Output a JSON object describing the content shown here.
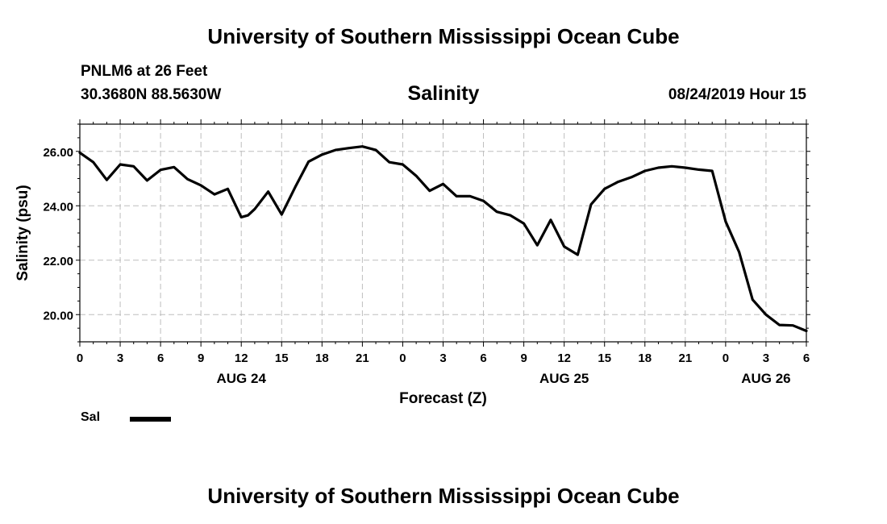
{
  "header": {
    "title": "University of Southern Mississippi Ocean Cube",
    "station": "PNLM6 at 26 Feet",
    "location": "30.3680N 88.5630W",
    "variable": "Salinity",
    "timestamp": "08/24/2019 Hour 15"
  },
  "footer": {
    "title": "University of Southern Mississippi Ocean Cube"
  },
  "legend": {
    "label": "Sal",
    "color": "#000000"
  },
  "chart_data": {
    "type": "line",
    "title": "Salinity",
    "xlabel": "Forecast (Z)",
    "ylabel": "Salinity (psu)",
    "x_unit": "hours since Aug 24 00Z",
    "xlim": [
      0,
      54
    ],
    "ylim": [
      19.0,
      27.0
    ],
    "y_ticks": [
      20,
      22,
      24,
      26
    ],
    "y_tick_labels": [
      "20.00",
      "22.00",
      "24.00",
      "26.00"
    ],
    "x_ticks": [
      0,
      3,
      6,
      9,
      12,
      15,
      18,
      21,
      24,
      27,
      30,
      33,
      36,
      39,
      42,
      45,
      48,
      51,
      54
    ],
    "x_tick_labels": [
      "0",
      "3",
      "6",
      "9",
      "12",
      "15",
      "18",
      "21",
      "0",
      "3",
      "6",
      "9",
      "12",
      "15",
      "18",
      "21",
      "0",
      "3",
      "6"
    ],
    "date_labels": [
      {
        "x": 12,
        "label": "AUG 24"
      },
      {
        "x": 36,
        "label": "AUG 25"
      },
      {
        "x": 51,
        "label": "AUG 26"
      }
    ],
    "grid": true,
    "line_color": "#000000",
    "series": [
      {
        "name": "Sal",
        "x": [
          0,
          1,
          2,
          3,
          4,
          5,
          6,
          7,
          8,
          9,
          10,
          11,
          12,
          12.5,
          13,
          14,
          15,
          16,
          17,
          18,
          19,
          20,
          21,
          22,
          23,
          24,
          25,
          26,
          27,
          28,
          29,
          30,
          31,
          32,
          33,
          34,
          35,
          36,
          37,
          38,
          39,
          40,
          41,
          42,
          43,
          44,
          45,
          46,
          47,
          48,
          49,
          50,
          51,
          52,
          53,
          54
        ],
        "values": [
          25.95,
          25.6,
          24.95,
          25.52,
          25.45,
          24.93,
          25.32,
          25.42,
          24.98,
          24.75,
          24.42,
          24.62,
          23.58,
          23.65,
          23.88,
          24.52,
          23.68,
          24.68,
          25.62,
          25.88,
          26.05,
          26.12,
          26.18,
          26.05,
          25.6,
          25.52,
          25.1,
          24.55,
          24.8,
          24.35,
          24.35,
          24.18,
          23.78,
          23.65,
          23.35,
          22.55,
          23.48,
          22.5,
          22.2,
          24.05,
          24.62,
          24.88,
          25.05,
          25.28,
          25.4,
          25.45,
          25.4,
          25.33,
          25.28,
          23.42,
          22.3,
          20.55,
          20.0,
          19.62,
          19.6,
          19.4
        ]
      }
    ]
  }
}
